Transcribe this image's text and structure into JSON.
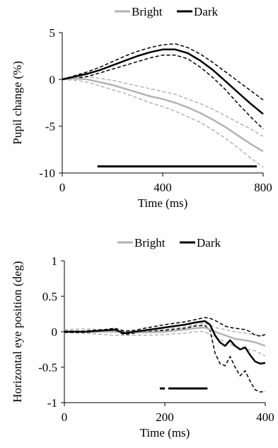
{
  "chart_data": [
    {
      "type": "line",
      "xlabel": "Time (ms)",
      "ylabel": "Pupil change (%)",
      "xlim": [
        0,
        800
      ],
      "ylim": [
        -10,
        5
      ],
      "xticks": [
        "0",
        "400",
        "800"
      ],
      "yticks": [
        "5",
        "0",
        "-5",
        "-10"
      ],
      "legend": {
        "placement": "top",
        "entries": [
          "Bright",
          "Dark"
        ]
      },
      "colors": {
        "Bright": "#b3b3b3",
        "Dark": "#000000"
      },
      "series": [
        {
          "name": "Bright",
          "x": [
            0,
            50,
            100,
            150,
            200,
            250,
            300,
            350,
            400,
            450,
            500,
            550,
            600,
            650,
            700,
            750,
            800
          ],
          "y": [
            0,
            0.1,
            0,
            -0.3,
            -0.6,
            -1.0,
            -1.4,
            -1.8,
            -2.1,
            -2.5,
            -3.0,
            -3.6,
            -4.3,
            -5.1,
            -6.0,
            -6.9,
            -7.7
          ],
          "upper": [
            0,
            0.2,
            0.3,
            0.1,
            -0.1,
            -0.4,
            -0.7,
            -1.0,
            -1.3,
            -1.6,
            -2.1,
            -2.6,
            -3.2,
            -3.9,
            -4.6,
            -5.3,
            -6.1
          ],
          "lower": [
            0,
            -0.1,
            -0.3,
            -0.7,
            -1.1,
            -1.5,
            -2.0,
            -2.5,
            -2.9,
            -3.4,
            -4.0,
            -4.6,
            -5.4,
            -6.3,
            -7.3,
            -8.4,
            -9.4
          ]
        },
        {
          "name": "Dark",
          "x": [
            0,
            50,
            100,
            150,
            200,
            250,
            300,
            350,
            400,
            450,
            500,
            550,
            600,
            650,
            700,
            750,
            800
          ],
          "y": [
            0,
            0.3,
            0.6,
            1.0,
            1.5,
            2.0,
            2.5,
            2.9,
            3.2,
            3.2,
            2.8,
            2.0,
            1.0,
            -0.2,
            -1.4,
            -2.6,
            -3.7
          ],
          "upper": [
            0,
            0.4,
            0.8,
            1.3,
            1.9,
            2.5,
            3.0,
            3.4,
            3.7,
            3.8,
            3.4,
            2.7,
            1.8,
            0.8,
            -0.2,
            -1.2,
            -2.2
          ],
          "lower": [
            0,
            0.1,
            0.3,
            0.7,
            1.1,
            1.5,
            1.9,
            2.3,
            2.6,
            2.6,
            2.2,
            1.3,
            0.2,
            -1.1,
            -2.6,
            -4.0,
            -5.3
          ]
        }
      ],
      "significance_bar": {
        "x": [
          140,
          775
        ],
        "y": -9.3
      }
    },
    {
      "type": "line",
      "xlabel": "Time (ms)",
      "ylabel": "Horizontal eye position (deg)",
      "xlim": [
        0,
        400
      ],
      "ylim": [
        -1,
        1
      ],
      "xticks": [
        "0",
        "200",
        "400"
      ],
      "yticks": [
        "1",
        "0.5",
        "0",
        "-0.5",
        "-1"
      ],
      "legend": {
        "placement": "top",
        "entries": [
          "Bright",
          "Dark"
        ]
      },
      "colors": {
        "Bright": "#b3b3b3",
        "Dark": "#000000"
      },
      "series": [
        {
          "name": "Bright",
          "x": [
            0,
            40,
            80,
            100,
            120,
            160,
            200,
            240,
            260,
            280,
            300,
            320,
            340,
            360,
            380,
            400
          ],
          "y": [
            0,
            0,
            0,
            0,
            -0.01,
            -0.01,
            0,
            0.03,
            0.05,
            0.06,
            0,
            -0.05,
            -0.1,
            -0.12,
            -0.15,
            -0.2
          ],
          "upper": [
            0.03,
            0.04,
            0.03,
            0.02,
            0.01,
            0.01,
            0.03,
            0.07,
            0.1,
            0.12,
            0.06,
            0.03,
            0,
            -0.02,
            -0.04,
            -0.06
          ],
          "lower": [
            -0.01,
            -0.02,
            -0.04,
            -0.05,
            -0.05,
            -0.05,
            -0.04,
            -0.02,
            0,
            0,
            -0.08,
            -0.14,
            -0.21,
            -0.24,
            -0.27,
            -0.34
          ]
        },
        {
          "name": "Dark",
          "x": [
            0,
            40,
            80,
            100,
            120,
            140,
            160,
            200,
            240,
            260,
            280,
            290,
            300,
            310,
            320,
            330,
            340,
            350,
            360,
            370,
            380,
            390,
            400
          ],
          "y": [
            0,
            0,
            0.02,
            0.03,
            -0.02,
            0,
            0.02,
            0.06,
            0.1,
            0.13,
            0.15,
            0.1,
            -0.05,
            -0.15,
            -0.2,
            -0.12,
            -0.2,
            -0.25,
            -0.22,
            -0.33,
            -0.42,
            -0.45,
            -0.44
          ],
          "upper": [
            0.01,
            0.01,
            0.03,
            0.05,
            0.01,
            0.02,
            0.05,
            0.1,
            0.14,
            0.17,
            0.2,
            0.19,
            0.16,
            0.12,
            0.08,
            0.06,
            0.05,
            0.04,
            0.03,
            0.0,
            -0.05,
            -0.06,
            -0.04
          ],
          "lower": [
            -0.01,
            -0.01,
            0.0,
            0.01,
            -0.04,
            -0.02,
            0.0,
            0.02,
            0.05,
            0.08,
            0.09,
            0.02,
            -0.3,
            -0.45,
            -0.48,
            -0.35,
            -0.5,
            -0.62,
            -0.55,
            -0.7,
            -0.82,
            -0.85,
            -0.84
          ]
        }
      ],
      "significance_bars": [
        {
          "x": [
            190,
            200
          ],
          "y": -0.8
        },
        {
          "x": [
            207,
            285
          ],
          "y": -0.8
        }
      ]
    }
  ]
}
